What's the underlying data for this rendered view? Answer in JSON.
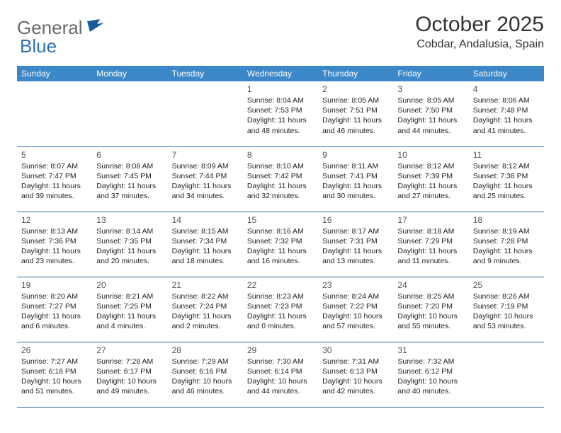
{
  "brand": {
    "name_a": "General",
    "name_b": "Blue"
  },
  "title": "October 2025",
  "location": "Cobdar, Andalusia, Spain",
  "colors": {
    "header_bg": "#3b87c8",
    "border": "#2f6ca8",
    "logo_gray": "#6b6b6b",
    "logo_blue": "#2d6fb5",
    "background": "#ffffff"
  },
  "daynames": [
    "Sunday",
    "Monday",
    "Tuesday",
    "Wednesday",
    "Thursday",
    "Friday",
    "Saturday"
  ],
  "weeks": [
    [
      {
        "n": "",
        "sr": "",
        "ss": "",
        "dl": ""
      },
      {
        "n": "",
        "sr": "",
        "ss": "",
        "dl": ""
      },
      {
        "n": "",
        "sr": "",
        "ss": "",
        "dl": ""
      },
      {
        "n": "1",
        "sr": "8:04 AM",
        "ss": "7:53 PM",
        "dl": "11 hours and 48 minutes."
      },
      {
        "n": "2",
        "sr": "8:05 AM",
        "ss": "7:51 PM",
        "dl": "11 hours and 46 minutes."
      },
      {
        "n": "3",
        "sr": "8:05 AM",
        "ss": "7:50 PM",
        "dl": "11 hours and 44 minutes."
      },
      {
        "n": "4",
        "sr": "8:06 AM",
        "ss": "7:48 PM",
        "dl": "11 hours and 41 minutes."
      }
    ],
    [
      {
        "n": "5",
        "sr": "8:07 AM",
        "ss": "7:47 PM",
        "dl": "11 hours and 39 minutes."
      },
      {
        "n": "6",
        "sr": "8:08 AM",
        "ss": "7:45 PM",
        "dl": "11 hours and 37 minutes."
      },
      {
        "n": "7",
        "sr": "8:09 AM",
        "ss": "7:44 PM",
        "dl": "11 hours and 34 minutes."
      },
      {
        "n": "8",
        "sr": "8:10 AM",
        "ss": "7:42 PM",
        "dl": "11 hours and 32 minutes."
      },
      {
        "n": "9",
        "sr": "8:11 AM",
        "ss": "7:41 PM",
        "dl": "11 hours and 30 minutes."
      },
      {
        "n": "10",
        "sr": "8:12 AM",
        "ss": "7:39 PM",
        "dl": "11 hours and 27 minutes."
      },
      {
        "n": "11",
        "sr": "8:12 AM",
        "ss": "7:38 PM",
        "dl": "11 hours and 25 minutes."
      }
    ],
    [
      {
        "n": "12",
        "sr": "8:13 AM",
        "ss": "7:36 PM",
        "dl": "11 hours and 23 minutes."
      },
      {
        "n": "13",
        "sr": "8:14 AM",
        "ss": "7:35 PM",
        "dl": "11 hours and 20 minutes."
      },
      {
        "n": "14",
        "sr": "8:15 AM",
        "ss": "7:34 PM",
        "dl": "11 hours and 18 minutes."
      },
      {
        "n": "15",
        "sr": "8:16 AM",
        "ss": "7:32 PM",
        "dl": "11 hours and 16 minutes."
      },
      {
        "n": "16",
        "sr": "8:17 AM",
        "ss": "7:31 PM",
        "dl": "11 hours and 13 minutes."
      },
      {
        "n": "17",
        "sr": "8:18 AM",
        "ss": "7:29 PM",
        "dl": "11 hours and 11 minutes."
      },
      {
        "n": "18",
        "sr": "8:19 AM",
        "ss": "7:28 PM",
        "dl": "11 hours and 9 minutes."
      }
    ],
    [
      {
        "n": "19",
        "sr": "8:20 AM",
        "ss": "7:27 PM",
        "dl": "11 hours and 6 minutes."
      },
      {
        "n": "20",
        "sr": "8:21 AM",
        "ss": "7:25 PM",
        "dl": "11 hours and 4 minutes."
      },
      {
        "n": "21",
        "sr": "8:22 AM",
        "ss": "7:24 PM",
        "dl": "11 hours and 2 minutes."
      },
      {
        "n": "22",
        "sr": "8:23 AM",
        "ss": "7:23 PM",
        "dl": "11 hours and 0 minutes."
      },
      {
        "n": "23",
        "sr": "8:24 AM",
        "ss": "7:22 PM",
        "dl": "10 hours and 57 minutes."
      },
      {
        "n": "24",
        "sr": "8:25 AM",
        "ss": "7:20 PM",
        "dl": "10 hours and 55 minutes."
      },
      {
        "n": "25",
        "sr": "8:26 AM",
        "ss": "7:19 PM",
        "dl": "10 hours and 53 minutes."
      }
    ],
    [
      {
        "n": "26",
        "sr": "7:27 AM",
        "ss": "6:18 PM",
        "dl": "10 hours and 51 minutes."
      },
      {
        "n": "27",
        "sr": "7:28 AM",
        "ss": "6:17 PM",
        "dl": "10 hours and 49 minutes."
      },
      {
        "n": "28",
        "sr": "7:29 AM",
        "ss": "6:16 PM",
        "dl": "10 hours and 46 minutes."
      },
      {
        "n": "29",
        "sr": "7:30 AM",
        "ss": "6:14 PM",
        "dl": "10 hours and 44 minutes."
      },
      {
        "n": "30",
        "sr": "7:31 AM",
        "ss": "6:13 PM",
        "dl": "10 hours and 42 minutes."
      },
      {
        "n": "31",
        "sr": "7:32 AM",
        "ss": "6:12 PM",
        "dl": "10 hours and 40 minutes."
      },
      {
        "n": "",
        "sr": "",
        "ss": "",
        "dl": ""
      }
    ]
  ],
  "labels": {
    "sunrise": "Sunrise:",
    "sunset": "Sunset:",
    "daylight": "Daylight:"
  }
}
